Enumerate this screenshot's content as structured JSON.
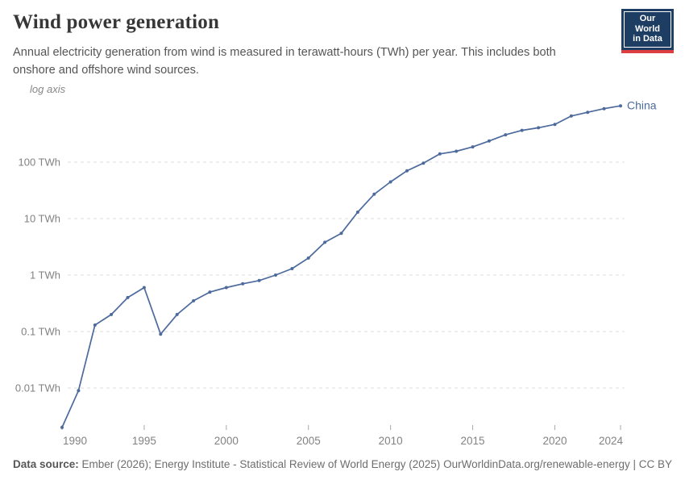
{
  "header": {
    "title": "Wind power generation",
    "subtitle": "Annual electricity generation from wind is measured in terawatt-hours (TWh) per year. This includes both onshore and offshore wind sources."
  },
  "logo": {
    "line1": "Our World",
    "line2": "in Data",
    "bg_color": "#1d3d63",
    "stripe_color": "#dc3e42"
  },
  "chart_data": {
    "type": "line",
    "y_scale": "log",
    "scale_label": "log axis",
    "unit": "TWh",
    "x": [
      1990,
      1991,
      1992,
      1993,
      1994,
      1995,
      1996,
      1997,
      1998,
      1999,
      2000,
      2001,
      2002,
      2003,
      2004,
      2005,
      2006,
      2007,
      2008,
      2009,
      2010,
      2011,
      2012,
      2013,
      2014,
      2015,
      2016,
      2017,
      2018,
      2019,
      2020,
      2021,
      2022,
      2023,
      2024
    ],
    "series": [
      {
        "name": "China",
        "color": "#4c6a9c",
        "values": [
          0.002,
          0.009,
          0.13,
          0.2,
          0.4,
          0.6,
          0.09,
          0.2,
          0.35,
          0.5,
          0.6,
          0.7,
          0.8,
          1.0,
          1.3,
          2.0,
          3.8,
          5.5,
          13,
          27,
          44.6,
          70.3,
          96,
          140,
          156,
          186,
          237,
          305,
          366,
          406,
          466,
          656,
          763,
          886,
          992
        ]
      }
    ],
    "y_ticks": [
      {
        "value": 100,
        "label": "100 TWh"
      },
      {
        "value": 10,
        "label": "10 TWh"
      },
      {
        "value": 1,
        "label": "1 TWh"
      },
      {
        "value": 0.1,
        "label": "0.1 TWh"
      },
      {
        "value": 0.01,
        "label": "0.01 TWh"
      }
    ],
    "x_ticks": [
      "1990",
      "1995",
      "2000",
      "2005",
      "2010",
      "2015",
      "2020",
      "2024"
    ],
    "xlim": [
      1990,
      2024
    ],
    "ylim": [
      0.002,
      1000
    ],
    "grid": "dashed",
    "legend_position": "end-of-line",
    "colors": {
      "grid": "#dddddd",
      "tick": "#a8a8a8",
      "axis_text": "#828282",
      "scale_label_text": "#878787"
    }
  },
  "footer": {
    "source_label": "Data source:",
    "source_text": " Ember (2026); Energy Institute - Statistical Review of World Energy (2025)",
    "link_text": "OurWorldinData.org/renewable-energy | CC BY"
  }
}
